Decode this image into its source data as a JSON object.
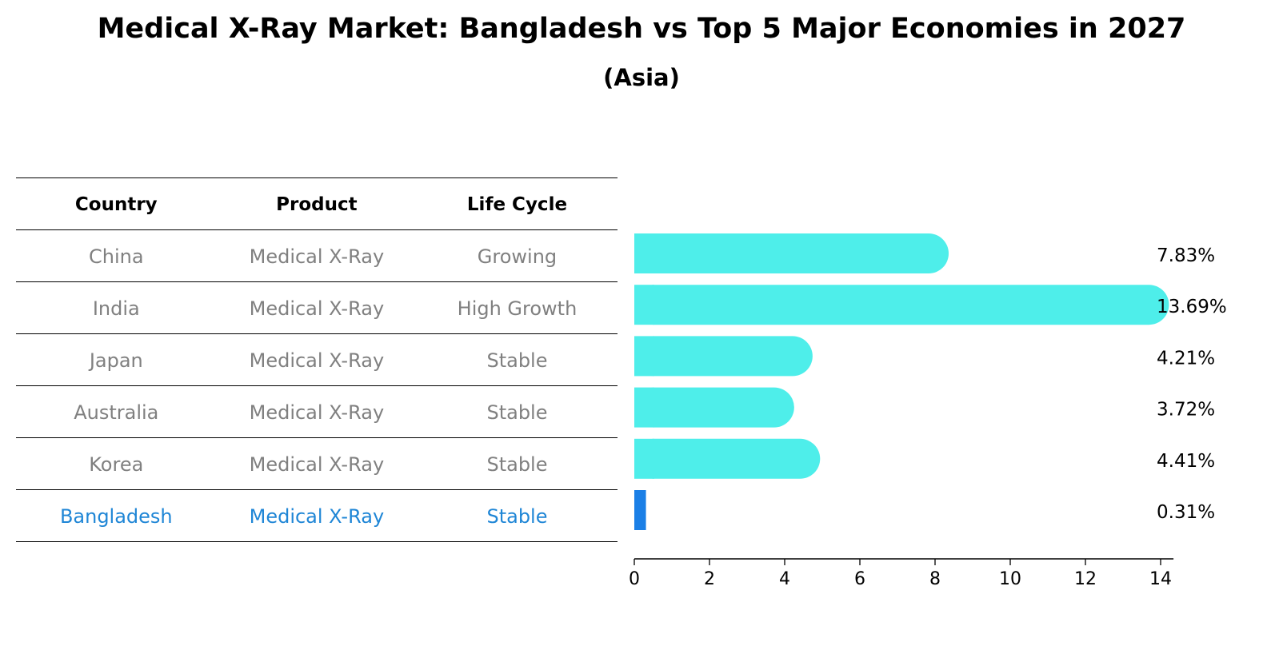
{
  "title": "Medical X-Ray Market: Bangladesh vs Top 5 Major Economies in 2027",
  "subtitle": "(Asia)",
  "table": {
    "headers": [
      "Country",
      "Product",
      "Life Cycle"
    ],
    "rows": [
      [
        "China",
        "Medical X-Ray",
        "Growing"
      ],
      [
        "India",
        "Medical X-Ray",
        "High Growth"
      ],
      [
        "Japan",
        "Medical X-Ray",
        "Stable"
      ],
      [
        "Australia",
        "Medical X-Ray",
        "Stable"
      ],
      [
        "Korea",
        "Medical X-Ray",
        "Stable"
      ],
      [
        "Bangladesh",
        "Medical X-Ray",
        "Stable"
      ]
    ]
  },
  "chart_data": {
    "type": "bar",
    "orientation": "horizontal",
    "categories": [
      "China",
      "India",
      "Japan",
      "Australia",
      "Korea",
      "Bangladesh"
    ],
    "values": [
      7.83,
      13.69,
      4.21,
      3.72,
      4.41,
      0.31
    ],
    "value_labels": [
      "7.83%",
      "13.69%",
      "4.21%",
      "3.72%",
      "4.41%",
      "0.31%"
    ],
    "xticks": [
      0,
      2,
      4,
      6,
      8,
      10,
      12,
      14
    ],
    "xlim": [
      0,
      14.3
    ],
    "colors": {
      "default": "#4eeeea",
      "highlight": "#1a7fe6"
    },
    "highlight_category": "Bangladesh"
  }
}
